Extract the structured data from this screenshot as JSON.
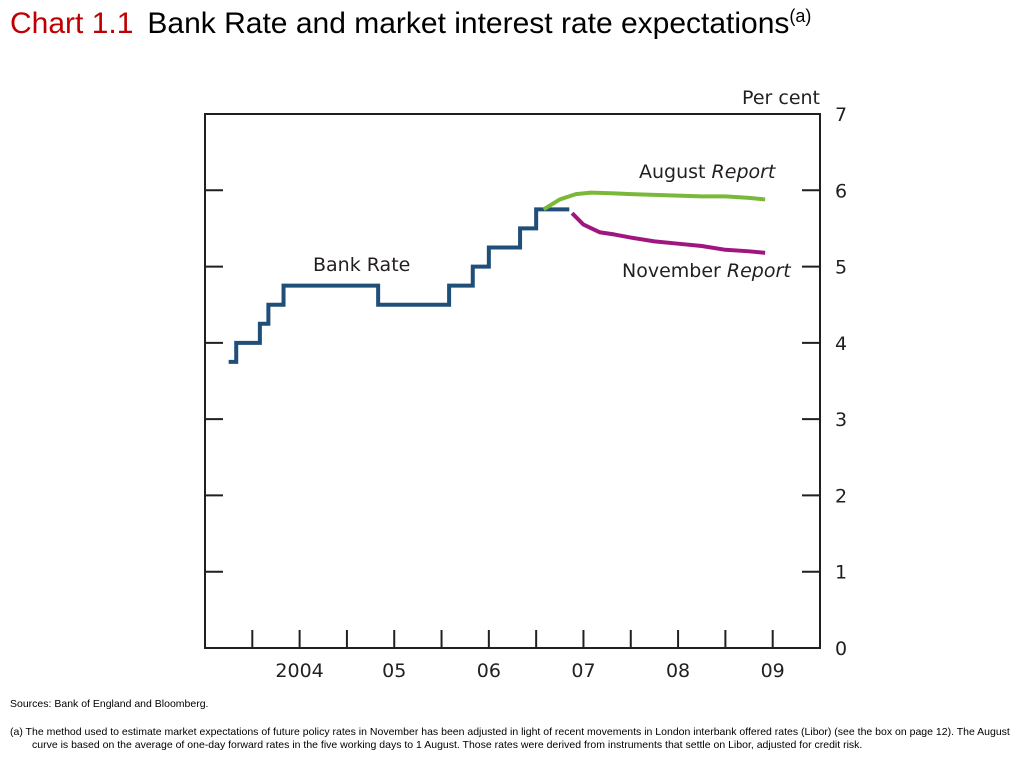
{
  "title": {
    "number": "Chart 1.1",
    "text": "Bank Rate and market interest rate expectations",
    "superscript": "(a)"
  },
  "chart_data": {
    "type": "line",
    "ylabel": "Per cent",
    "ylim": [
      0,
      7
    ],
    "yticks": [
      "0",
      "1",
      "2",
      "3",
      "4",
      "5",
      "6",
      "7"
    ],
    "xlim": [
      2003.5,
      2010
    ],
    "xticks": [
      "2004",
      "05",
      "06",
      "07",
      "08",
      "09"
    ],
    "grid": false,
    "series": [
      {
        "name": "Bank Rate",
        "color": "#1f4e79",
        "step": true,
        "points": [
          [
            2003.75,
            3.75
          ],
          [
            2003.83,
            4.0
          ],
          [
            2004.08,
            4.25
          ],
          [
            2004.17,
            4.5
          ],
          [
            2004.33,
            4.75
          ],
          [
            2005.33,
            4.5
          ],
          [
            2006.08,
            4.75
          ],
          [
            2006.33,
            5.0
          ],
          [
            2006.5,
            5.25
          ],
          [
            2006.83,
            5.5
          ],
          [
            2007.0,
            5.75
          ],
          [
            2007.35,
            5.75
          ]
        ]
      },
      {
        "name": "August Report",
        "color": "#7ab83a",
        "points": [
          [
            2007.08,
            5.75
          ],
          [
            2007.25,
            5.88
          ],
          [
            2007.42,
            5.95
          ],
          [
            2007.58,
            5.97
          ],
          [
            2007.83,
            5.96
          ],
          [
            2008.0,
            5.95
          ],
          [
            2008.25,
            5.94
          ],
          [
            2008.5,
            5.93
          ],
          [
            2008.75,
            5.92
          ],
          [
            2009.0,
            5.92
          ],
          [
            2009.25,
            5.9
          ],
          [
            2009.42,
            5.88
          ]
        ]
      },
      {
        "name": "November Report",
        "color": "#a0157f",
        "points": [
          [
            2007.38,
            5.7
          ],
          [
            2007.5,
            5.55
          ],
          [
            2007.67,
            5.45
          ],
          [
            2007.83,
            5.42
          ],
          [
            2008.0,
            5.38
          ],
          [
            2008.25,
            5.33
          ],
          [
            2008.5,
            5.3
          ],
          [
            2008.75,
            5.27
          ],
          [
            2009.0,
            5.22
          ],
          [
            2009.25,
            5.2
          ],
          [
            2009.42,
            5.18
          ]
        ]
      }
    ],
    "annotations": [
      {
        "series": "Bank Rate",
        "text": "Bank Rate"
      },
      {
        "series": "August Report",
        "text": "August",
        "text_italic": "Report"
      },
      {
        "series": "November Report",
        "text": "November",
        "text_italic": "Report"
      }
    ]
  },
  "notes": {
    "sources": "Sources:  Bank of England and Bloomberg.",
    "footnote": "(a)  The method used to estimate market expectations of future policy rates in November has been adjusted in light of recent movements in London interbank offered rates (Libor) (see the box on page 12).  The August curve is based on the average of one-day forward rates in the five working days to 1 August.  Those rates were derived from instruments that settle on Libor, adjusted for credit risk."
  }
}
